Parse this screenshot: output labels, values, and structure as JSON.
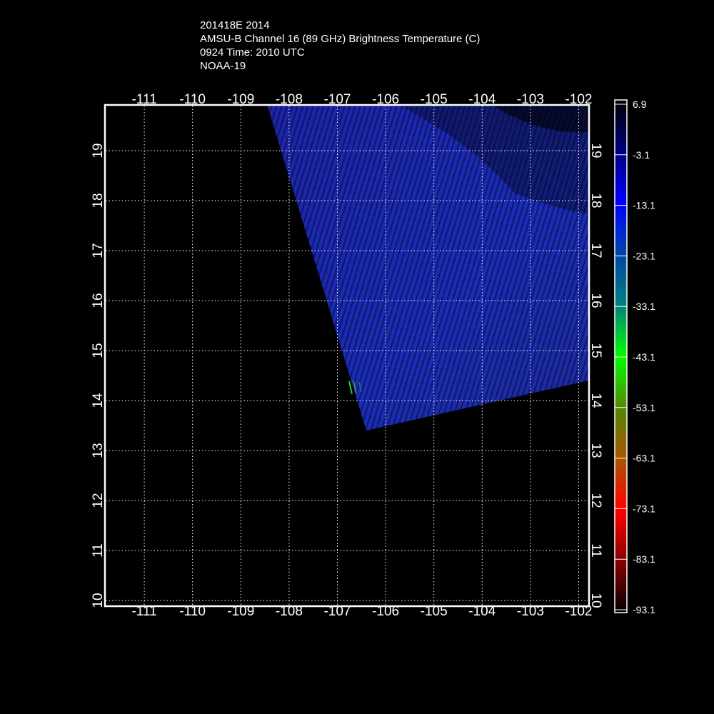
{
  "header": {
    "line1": "201418E 2014",
    "line2": "AMSU-B Channel 16 (89 GHz) Brightness Temperature (C)",
    "line3": "0924 Time: 2010 UTC",
    "line4": "NOAA-19"
  },
  "map": {
    "lon_range": [
      -111.8,
      -101.8
    ],
    "lat_range": [
      9.9,
      19.9
    ],
    "lon_ticks": [
      "-111",
      "-110",
      "-109",
      "-108",
      "-107",
      "-106",
      "-105",
      "-104",
      "-103",
      "-102"
    ],
    "lon_values": [
      -111,
      -110,
      -109,
      -108,
      -107,
      -106,
      -105,
      -104,
      -103,
      -102
    ],
    "lat_ticks": [
      "19",
      "18",
      "17",
      "16",
      "15",
      "14",
      "13",
      "12",
      "11",
      "10"
    ],
    "lat_values": [
      19,
      18,
      17,
      16,
      15,
      14,
      13,
      12,
      11,
      10
    ],
    "grid": true,
    "swath_color": "#1a28b4",
    "swath_polygon_lonlat": [
      [
        -108.45,
        19.9
      ],
      [
        -106.4,
        13.4
      ],
      [
        -101.8,
        14.4
      ],
      [
        -101.8,
        19.9
      ]
    ]
  },
  "colorbar": {
    "labels": [
      "6.9",
      "-3.1",
      "-13.1",
      "-23.1",
      "-33.1",
      "-43.1",
      "-53.1",
      "-63.1",
      "-73.1",
      "-83.1",
      "-93.1"
    ],
    "colors": [
      "#000000",
      "#000080",
      "#0000ff",
      "#0044aa",
      "#008080",
      "#00ff00",
      "#558800",
      "#aa5500",
      "#ff0000",
      "#880000",
      "#000000"
    ]
  }
}
